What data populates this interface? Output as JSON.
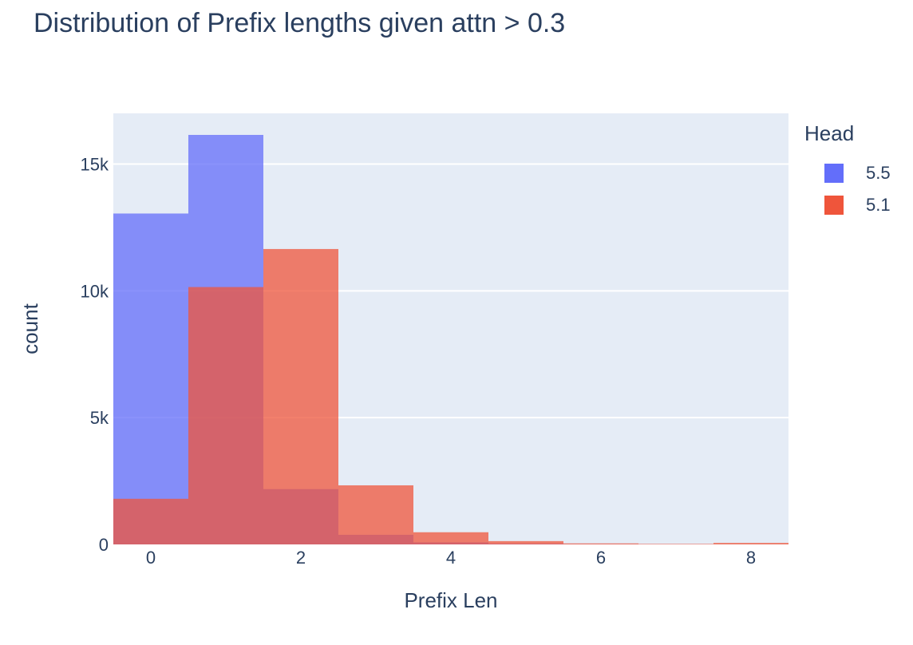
{
  "chart_data": {
    "type": "bar",
    "barmode": "overlay",
    "title": "Distribution of Prefix lengths given attn > 0.3",
    "xlabel": "Prefix Len",
    "ylabel": "count",
    "xlim": [
      -0.5,
      8.5
    ],
    "ylim": [
      0,
      17000
    ],
    "x_ticks": [
      0,
      2,
      4,
      6,
      8
    ],
    "y_ticks": [
      0,
      5000,
      10000,
      15000
    ],
    "y_tick_labels": [
      "0",
      "5k",
      "10k",
      "15k"
    ],
    "grid": true,
    "legend_position": "right",
    "legend_title": "Head",
    "categories": [
      0,
      1,
      2,
      3,
      4,
      5,
      6,
      7,
      8
    ],
    "series": [
      {
        "name": "5.5",
        "color": "#636efa",
        "values": [
          13050,
          16150,
          2180,
          380,
          80,
          30,
          10,
          5,
          2
        ]
      },
      {
        "name": "5.1",
        "color": "#ef553b",
        "values": [
          1800,
          10150,
          11650,
          2330,
          480,
          130,
          40,
          20,
          60
        ]
      }
    ]
  }
}
